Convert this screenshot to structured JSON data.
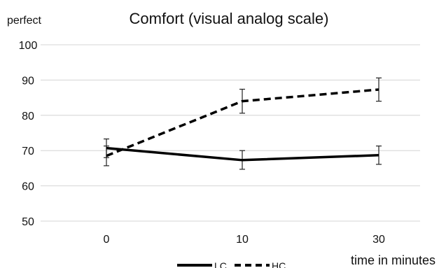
{
  "chart_data": {
    "type": "line",
    "title": "Comfort (visual analog scale)",
    "ylabel": "perfect",
    "xlabel": "time in minutes",
    "categories": [
      "0",
      "10",
      "30"
    ],
    "ylim": [
      50,
      100
    ],
    "yticks": [
      50,
      60,
      70,
      80,
      90,
      100
    ],
    "grid": true,
    "legend_position": "bottom-center",
    "series": [
      {
        "name": "LC",
        "style": "solid",
        "color": "#000000",
        "values": [
          70.7,
          67.3,
          68.7
        ],
        "error_low": [
          68.0,
          64.7,
          66.1
        ],
        "error_high": [
          73.3,
          70.0,
          71.3
        ]
      },
      {
        "name": "HC",
        "style": "dashed",
        "color": "#000000",
        "values": [
          68.5,
          84.0,
          87.3
        ],
        "error_low": [
          65.7,
          80.6,
          84.0
        ],
        "error_high": [
          71.3,
          87.4,
          90.6
        ]
      }
    ]
  }
}
